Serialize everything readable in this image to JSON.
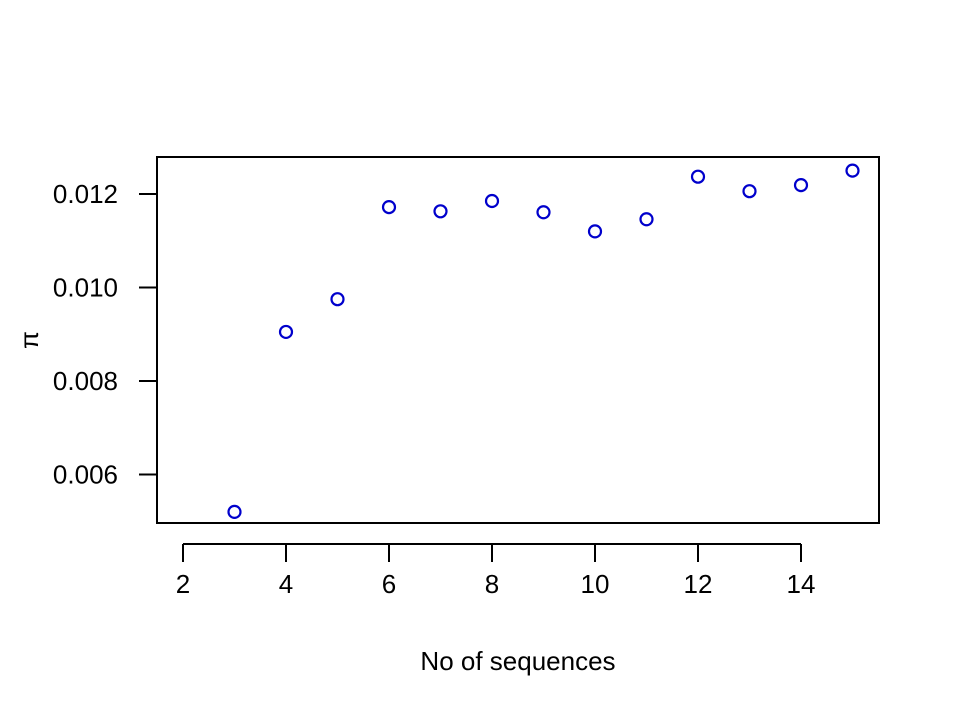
{
  "chart_data": {
    "type": "scatter",
    "title": "",
    "xlabel": "No of sequences",
    "ylabel": "π",
    "xlim": [
      2,
      15
    ],
    "ylim": [
      0.0052,
      0.0125
    ],
    "x_ticks": [
      2,
      4,
      6,
      8,
      10,
      12,
      14
    ],
    "y_ticks": [
      0.006,
      0.008,
      0.01,
      0.012
    ],
    "x_tick_labels": [
      "2",
      "4",
      "6",
      "8",
      "10",
      "12",
      "14"
    ],
    "y_tick_labels": [
      "0.006",
      "0.008",
      "0.010",
      "0.012"
    ],
    "grid": false,
    "marker": "open-circle",
    "point_color": "#0000cc",
    "series": [
      {
        "x": [
          3,
          4,
          5,
          6,
          7,
          8,
          9,
          10,
          11,
          12,
          13,
          14,
          15
        ],
        "y": [
          0.0052,
          0.00905,
          0.00975,
          0.01172,
          0.01163,
          0.01185,
          0.01161,
          0.0112,
          0.01146,
          0.01237,
          0.01206,
          0.01219,
          0.0125
        ]
      }
    ]
  }
}
